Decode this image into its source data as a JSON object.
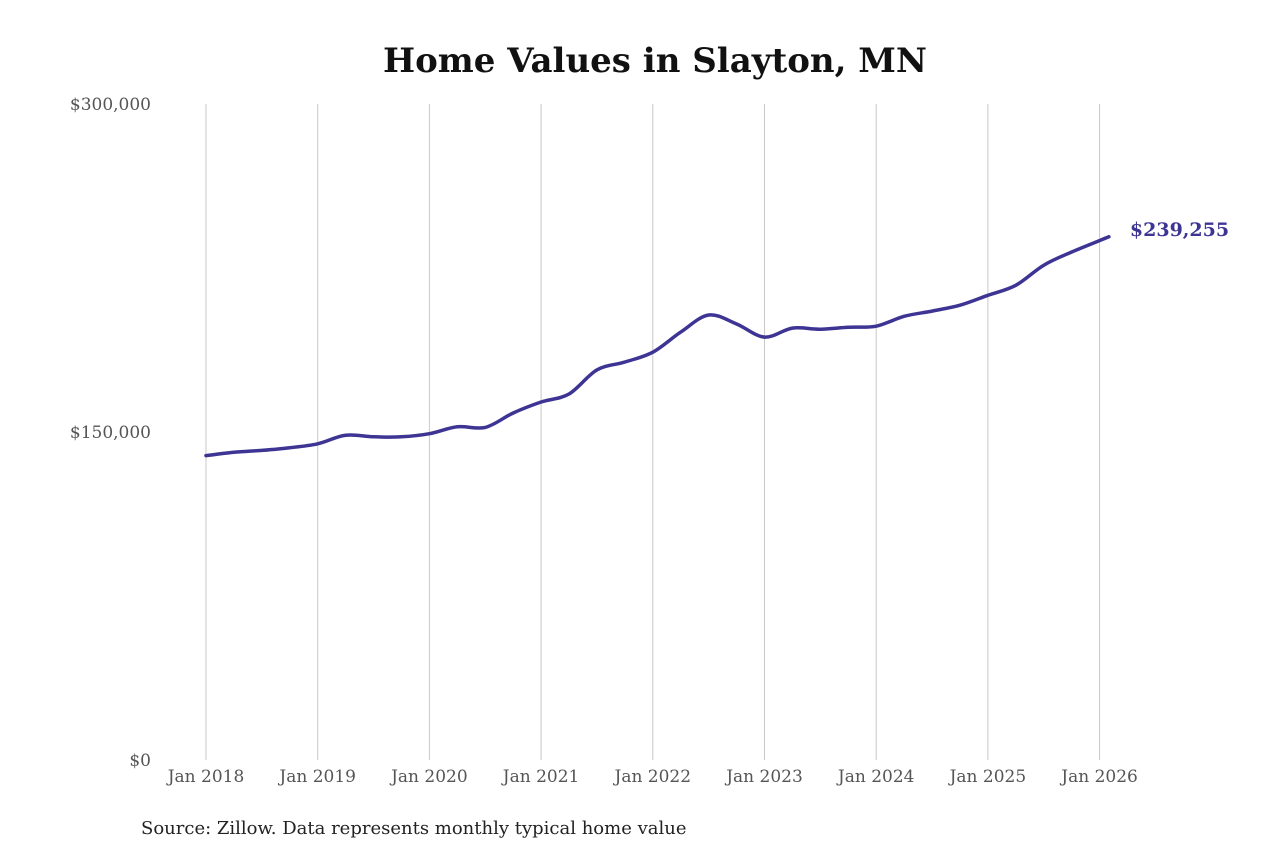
{
  "chart_data": {
    "type": "line",
    "title": "Home Values in Slayton, MN",
    "xlabel": "",
    "ylabel": "",
    "ylim": [
      0,
      300000
    ],
    "yticks": [
      {
        "value": 0,
        "label": "$0"
      },
      {
        "value": 150000,
        "label": "$150,000"
      },
      {
        "value": 300000,
        "label": "$300,000"
      }
    ],
    "xlim": [
      "2018-01",
      "2026-02"
    ],
    "xticks": [
      {
        "date": "2018-01",
        "label": "Jan 2018"
      },
      {
        "date": "2019-01",
        "label": "Jan 2019"
      },
      {
        "date": "2020-01",
        "label": "Jan 2020"
      },
      {
        "date": "2021-01",
        "label": "Jan 2021"
      },
      {
        "date": "2022-01",
        "label": "Jan 2022"
      },
      {
        "date": "2023-01",
        "label": "Jan 2023"
      },
      {
        "date": "2024-01",
        "label": "Jan 2024"
      },
      {
        "date": "2025-01",
        "label": "Jan 2025"
      },
      {
        "date": "2026-01",
        "label": "Jan 2026"
      }
    ],
    "grid": "vertical",
    "legend": "none",
    "series": [
      {
        "color": "#3d3494",
        "end_label": "$239,255",
        "points": [
          [
            "2018-01",
            139200
          ],
          [
            "2018-04",
            140700
          ],
          [
            "2018-07",
            141600
          ],
          [
            "2018-10",
            142800
          ],
          [
            "2019-01",
            144600
          ],
          [
            "2019-04",
            148500
          ],
          [
            "2019-07",
            147800
          ],
          [
            "2019-10",
            147800
          ],
          [
            "2020-01",
            149200
          ],
          [
            "2020-04",
            152400
          ],
          [
            "2020-07",
            152100
          ],
          [
            "2020-10",
            158700
          ],
          [
            "2021-01",
            163700
          ],
          [
            "2021-04",
            167400
          ],
          [
            "2021-07",
            178400
          ],
          [
            "2021-10",
            182000
          ],
          [
            "2022-01",
            186500
          ],
          [
            "2022-04",
            195700
          ],
          [
            "2022-07",
            203500
          ],
          [
            "2022-10",
            199400
          ],
          [
            "2023-01",
            193400
          ],
          [
            "2023-04",
            197500
          ],
          [
            "2023-07",
            197000
          ],
          [
            "2023-10",
            197900
          ],
          [
            "2024-01",
            198400
          ],
          [
            "2024-04",
            202900
          ],
          [
            "2024-07",
            205300
          ],
          [
            "2024-10",
            208000
          ],
          [
            "2025-01",
            212500
          ],
          [
            "2025-04",
            217100
          ],
          [
            "2025-07",
            226300
          ],
          [
            "2025-10",
            232300
          ],
          [
            "2026-02",
            239255
          ]
        ]
      }
    ],
    "source": "Source: Zillow. Data represents monthly typical home value"
  }
}
